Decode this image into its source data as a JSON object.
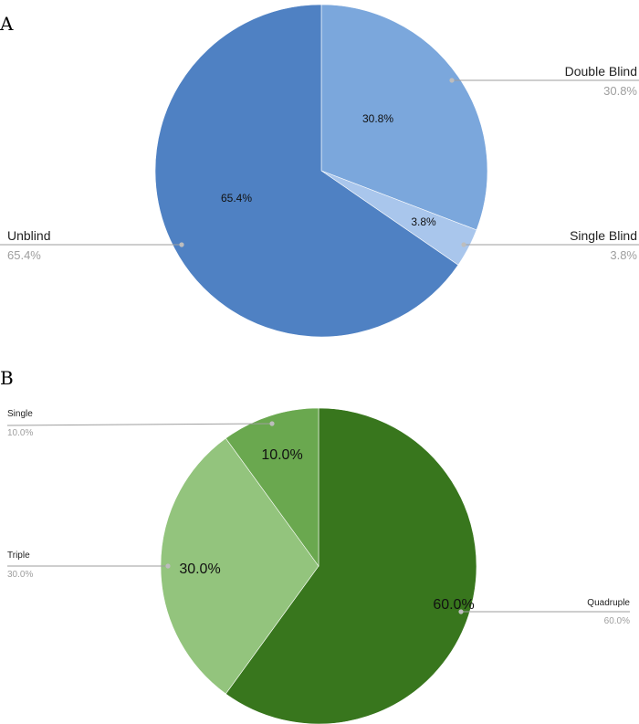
{
  "chart_data": [
    {
      "panel": "A",
      "type": "pie",
      "slices": [
        {
          "label": "Double Blind",
          "value": 30.8,
          "display": "30.8%",
          "color": "#7ba7dc"
        },
        {
          "label": "Single Blind",
          "value": 3.8,
          "display": "3.8%",
          "color": "#a9c6ec"
        },
        {
          "label": "Unblind",
          "value": 65.4,
          "display": "65.4%",
          "color": "#4f81c3"
        }
      ]
    },
    {
      "panel": "B",
      "type": "pie",
      "slices": [
        {
          "label": "Quadruple",
          "value": 60.0,
          "display": "60.0%",
          "color": "#38761d"
        },
        {
          "label": "Triple",
          "value": 30.0,
          "display": "30.0%",
          "color": "#93c47d"
        },
        {
          "label": "Single",
          "value": 10.0,
          "display": "10.0%",
          "color": "#6aa84f"
        }
      ]
    }
  ],
  "leader_line_color": "#9e9e9e"
}
